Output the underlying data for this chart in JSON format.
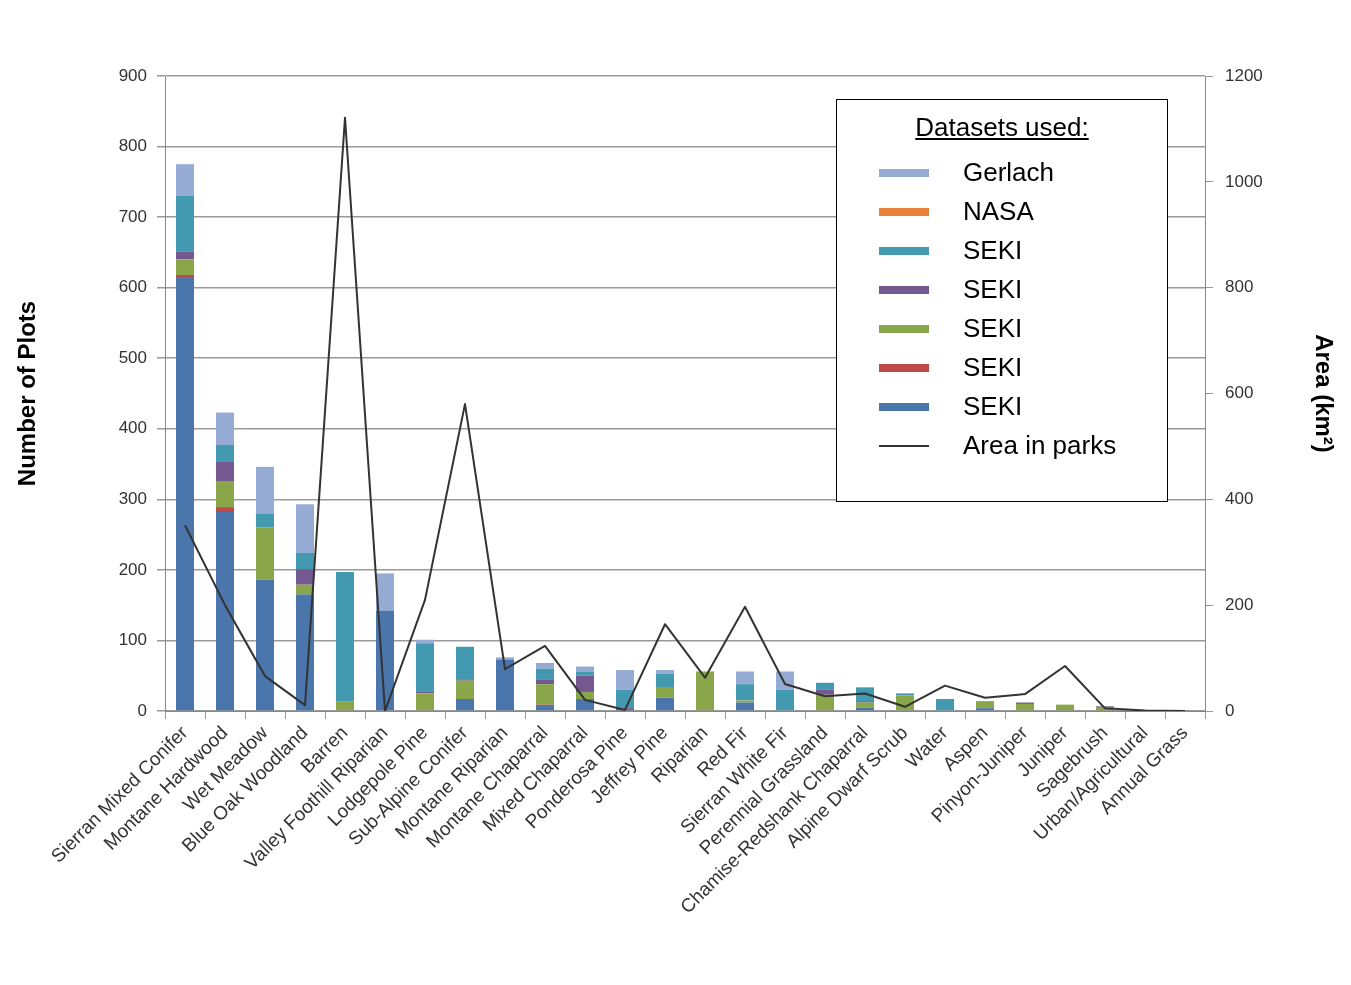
{
  "chart_data": {
    "type": "bar",
    "stacked": true,
    "legend": "top right",
    "legend_title": "Datasets used:",
    "grid": "y",
    "ylabel": "Number of Plots",
    "y2label": "Area (km²)",
    "categories": [
      "Sierran Mixed Conifer",
      "Montane Hardwood",
      "Wet Meadow",
      "Blue Oak Woodland",
      "Barren",
      "Valley Foothill Riparian",
      "Lodgepole Pine",
      "Sub-Alpine Conifer",
      "Montane Riparian",
      "Montane Chaparral",
      "Mixed Chaparral",
      "Ponderosa Pine",
      "Jeffrey Pine",
      "Riparian",
      "Red Fir",
      "Sierran White Fir",
      "Perennial Grassland",
      "Chamise-Redshank Chaparral",
      "Alpine Dwarf Scrub",
      "Water",
      "Aspen",
      "Pinyon-Juniper",
      "Juniper",
      "Sagebrush",
      "Urban/Agricultural",
      "Annual Grass"
    ],
    "ylim": [
      0,
      900
    ],
    "yticks": [
      0,
      100,
      200,
      300,
      400,
      500,
      600,
      700,
      800,
      900
    ],
    "y2lim": [
      0,
      1200
    ],
    "y2ticks": [
      0,
      200,
      400,
      600,
      800,
      1000,
      1200
    ],
    "series": [
      {
        "name": "SEKI",
        "color": "#4a76ab",
        "values": [
          615,
          282,
          186,
          165,
          0,
          142,
          0,
          17,
          73,
          7,
          17,
          null,
          19,
          0,
          12,
          0,
          0,
          5,
          0,
          0,
          4,
          0,
          0,
          0,
          0,
          0
        ]
      },
      {
        "name": "SEKI",
        "color": "#be4b48",
        "values": [
          3,
          7,
          0,
          0,
          0,
          0,
          0,
          0,
          0,
          2,
          0,
          0,
          0,
          0,
          0,
          0,
          0,
          0,
          0,
          0,
          0,
          0,
          0,
          0,
          0,
          0
        ]
      },
      {
        "name": "SEKI",
        "color": "#8aa64a",
        "values": [
          22,
          37,
          74,
          14,
          14,
          0,
          25,
          26,
          0,
          29,
          10,
          0,
          14,
          56,
          3,
          0,
          23,
          7,
          22,
          0,
          10,
          10,
          9,
          6,
          0,
          0
        ]
      },
      {
        "name": "SEKI",
        "color": "#74588f",
        "values": [
          11,
          28,
          0,
          22,
          0,
          0,
          2,
          2,
          0,
          7,
          23,
          4,
          1,
          null,
          0,
          0,
          7,
          2,
          0,
          0,
          0,
          2,
          0,
          1,
          0,
          0
        ]
      },
      {
        "name": "SEKI",
        "color": "#4299b0",
        "values": [
          79,
          23,
          20,
          23,
          183,
          0,
          69,
          46,
          0,
          15,
          6,
          26,
          19,
          0,
          23,
          30,
          10,
          19,
          3,
          17,
          0,
          0,
          0,
          0,
          0,
          0
        ]
      },
      {
        "name": "NASA",
        "color": "#e8823a",
        "values": [
          0,
          0,
          0,
          0,
          0,
          0,
          0,
          0,
          0,
          0,
          0,
          0,
          0,
          0,
          0,
          0,
          0,
          0,
          0,
          0,
          0,
          0,
          0,
          0,
          0,
          0
        ]
      },
      {
        "name": "Gerlach",
        "color": "#95abd3",
        "values": [
          45,
          46,
          66,
          69,
          0,
          53,
          5,
          0,
          3,
          8,
          7,
          28,
          5,
          0,
          18,
          26,
          0,
          1,
          0,
          0,
          0,
          0,
          0,
          0,
          0,
          0
        ]
      },
      {
        "name": "Area in parks",
        "type": "line",
        "axis": "y2",
        "color": "#333333",
        "marker": "none",
        "line_style": "solid",
        "values": [
          351,
          200,
          66,
          11,
          1121,
          0,
          210,
          580,
          79,
          123,
          21,
          2,
          164,
          63,
          197,
          51,
          28,
          33,
          8,
          48,
          25,
          32,
          85,
          5,
          1,
          0
        ]
      }
    ]
  }
}
